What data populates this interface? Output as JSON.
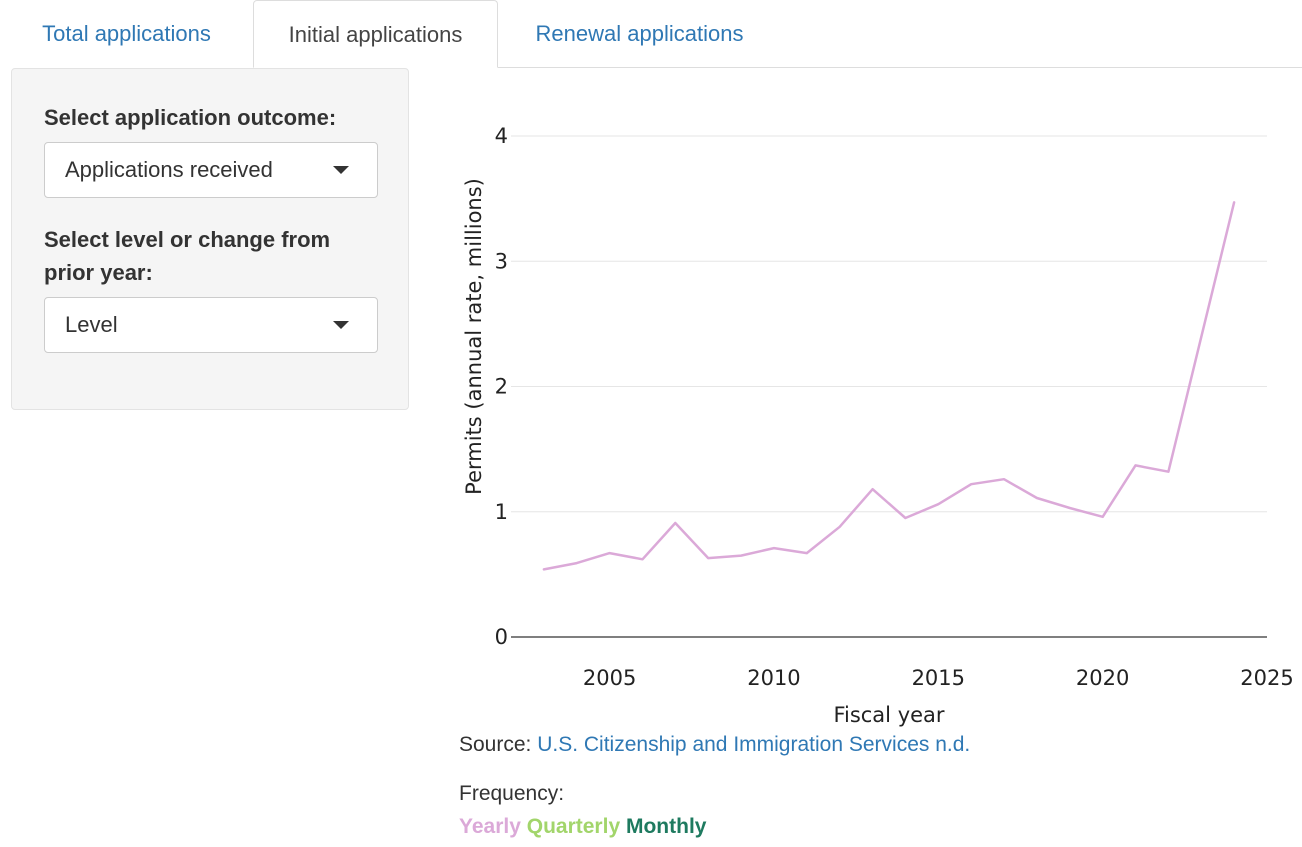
{
  "tabs": [
    {
      "label": "Total applications",
      "active": false
    },
    {
      "label": "Initial applications",
      "active": true
    },
    {
      "label": "Renewal applications",
      "active": false
    }
  ],
  "controls": {
    "outcome_label": "Select application outcome:",
    "outcome_value": "Applications received",
    "level_label_line1": "Select level or change from",
    "level_label_line2": "prior year:",
    "level_value": "Level"
  },
  "chart_data": {
    "type": "line",
    "xlabel": "Fiscal year",
    "ylabel": "Permits (annual rate, millions)",
    "xlim": [
      2002,
      2025
    ],
    "ylim": [
      0,
      4
    ],
    "xticks": [
      2005,
      2010,
      2015,
      2020,
      2025
    ],
    "yticks": [
      0,
      1,
      2,
      3,
      4
    ],
    "grid": true,
    "line_color": "#dba9d8",
    "series": [
      {
        "x": [
          2003,
          2004,
          2005,
          2006,
          2007,
          2008,
          2009,
          2010,
          2011,
          2012,
          2013,
          2014,
          2015,
          2016,
          2017,
          2018,
          2019,
          2020,
          2021,
          2022,
          2024
        ],
        "values": [
          0.54,
          0.59,
          0.67,
          0.62,
          0.91,
          0.63,
          0.65,
          0.71,
          0.67,
          0.88,
          1.18,
          0.95,
          1.06,
          1.22,
          1.26,
          1.11,
          1.03,
          0.96,
          1.37,
          1.32,
          3.47
        ]
      }
    ]
  },
  "source": {
    "prefix": "Source:",
    "link_text": "U.S. Citizenship and Immigration Services n.d."
  },
  "frequency": {
    "label": "Frequency:",
    "options": [
      {
        "label": "Yearly",
        "color": "#dba9d8"
      },
      {
        "label": "Quarterly",
        "color": "#a2d56b"
      },
      {
        "label": "Monthly",
        "color": "#1e7a5f"
      }
    ]
  }
}
